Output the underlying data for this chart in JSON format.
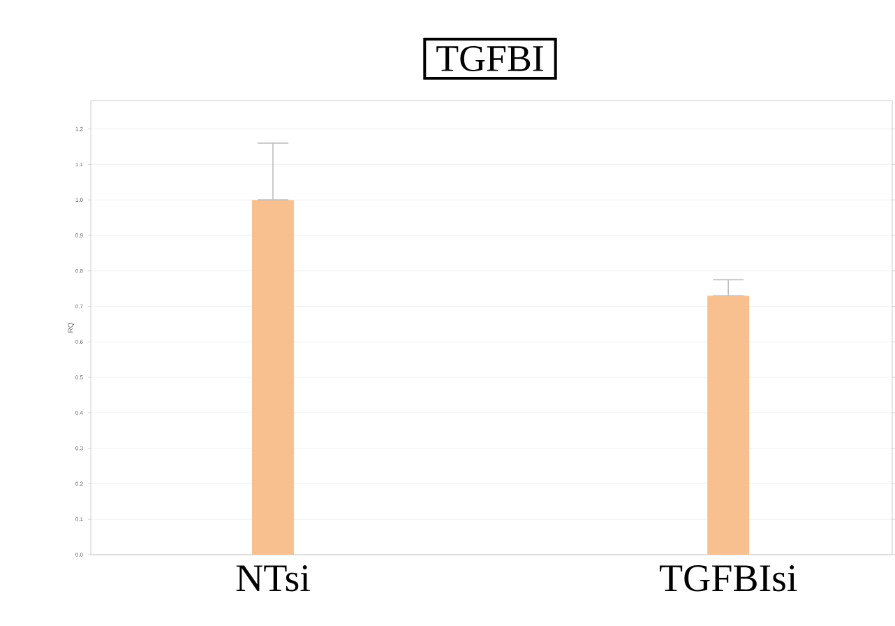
{
  "chart_data": {
    "type": "bar",
    "title": "TGFBI",
    "ylabel": "RQ",
    "categories": [
      "NTsi",
      "TGFBIsi"
    ],
    "values": [
      1.0,
      0.73
    ],
    "errors": [
      [
        1.0,
        1.16
      ],
      [
        0.73,
        0.775
      ]
    ],
    "color": "#f9c08f",
    "ylim": [
      0,
      1.28
    ],
    "yticks": [
      {
        "value": 0,
        "label": "0.0"
      },
      {
        "value": 0.1,
        "label": "0.1"
      },
      {
        "value": 0.2,
        "label": "0.2"
      },
      {
        "value": 0.3,
        "label": "0.3"
      },
      {
        "value": 0.4,
        "label": "0.4"
      },
      {
        "value": 0.5,
        "label": "0.5"
      },
      {
        "value": 0.6,
        "label": "0.6"
      },
      {
        "value": 0.7,
        "label": "0.7"
      },
      {
        "value": 0.8,
        "label": "0.8"
      },
      {
        "value": 0.9,
        "label": "0.9"
      },
      {
        "value": 1.0,
        "label": "1.0"
      },
      {
        "value": 1.1,
        "label": "1.1"
      },
      {
        "value": 1.2,
        "label": "1.2"
      }
    ],
    "grid": "y"
  }
}
